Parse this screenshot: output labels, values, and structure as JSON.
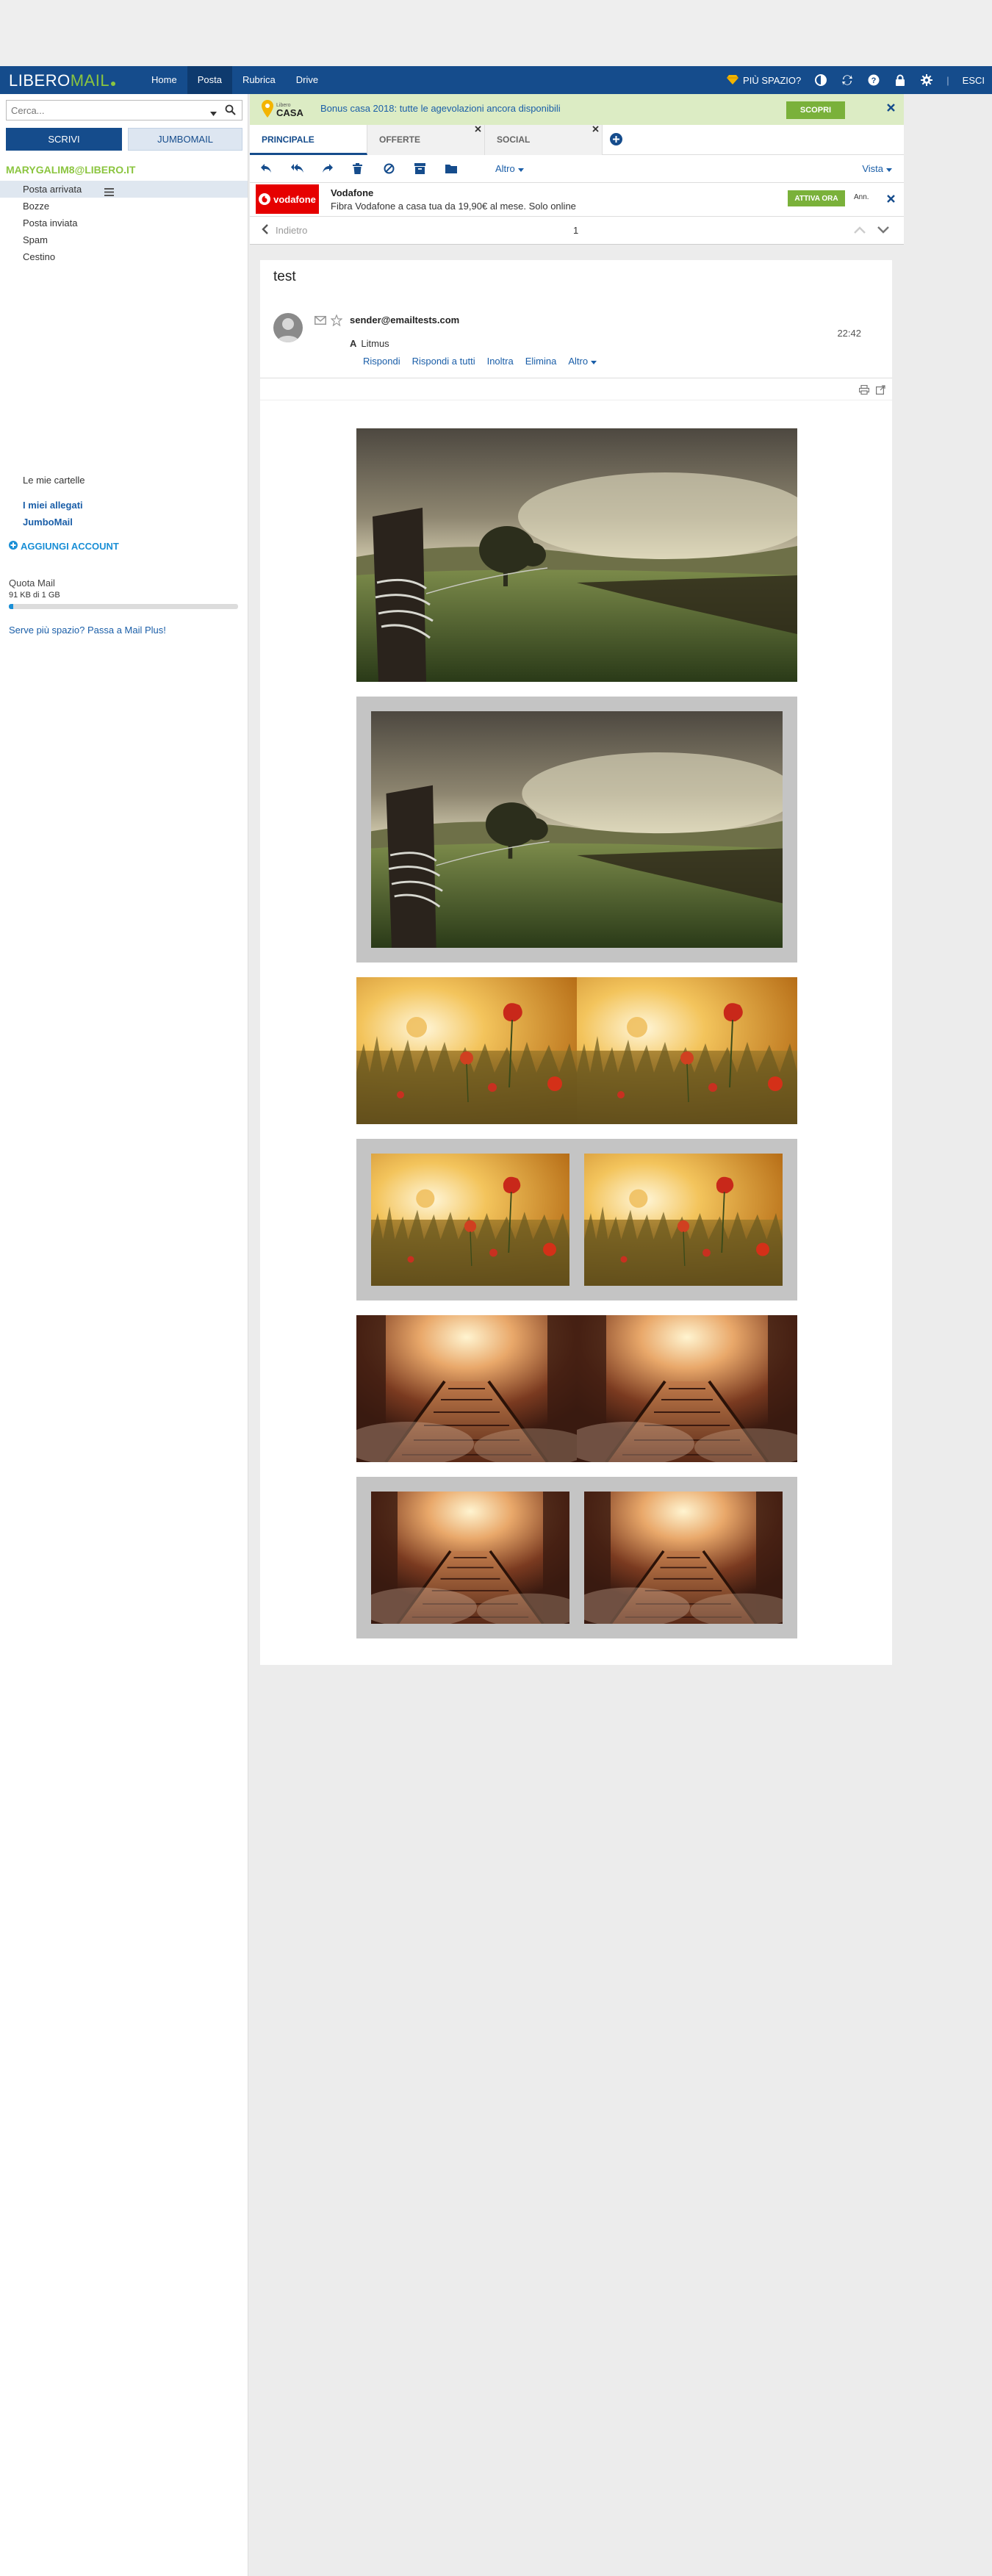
{
  "app": {
    "logo_part1": "LIBERO",
    "logo_part2": "MAIL",
    "colors": {
      "brand": "#154c8c",
      "accent": "#8bc53f",
      "link": "#1a5ea8"
    }
  },
  "nav": {
    "items": [
      {
        "label": "Home"
      },
      {
        "label": "Posta"
      },
      {
        "label": "Rubrica"
      },
      {
        "label": "Drive"
      }
    ],
    "more_space": "PIÙ SPAZIO?",
    "logout": "ESCI",
    "separator": "|"
  },
  "sidebar": {
    "search_placeholder": "Cerca...",
    "compose_label": "SCRIVI",
    "jumbo_label": "JUMBOMAIL",
    "account": "MARYGALIM8@LIBERO.IT",
    "folders": [
      {
        "label": "Posta arrivata"
      },
      {
        "label": "Bozze"
      },
      {
        "label": "Posta inviata"
      },
      {
        "label": "Spam"
      },
      {
        "label": "Cestino"
      }
    ],
    "my_folders": "Le mie cartelle",
    "attachments": "I miei allegati",
    "jumbomail": "JumboMail",
    "add_account": "AGGIUNGI ACCOUNT",
    "quota_label": "Quota Mail",
    "quota_value": "91 KB di 1 GB",
    "quota_fraction": 0.02,
    "upsell": "Serve più spazio? Passa a Mail Plus!"
  },
  "promo": {
    "logo_top": "Libero",
    "logo_text": "CASA",
    "text": "Bonus casa 2018: tutte le agevolazioni ancora disponibili",
    "button": "SCOPRI"
  },
  "tabs": {
    "items": [
      {
        "label": "PRINCIPALE"
      },
      {
        "label": "OFFERTE"
      },
      {
        "label": "SOCIAL"
      }
    ]
  },
  "toolbar": {
    "more": "Altro",
    "view": "Vista"
  },
  "ad": {
    "logo": "vodafone",
    "title": "Vodafone",
    "text": "Fibra Vodafone a casa tua da 19,90€ al mese. Solo online",
    "button": "ATTIVA ORA",
    "ann": "Ann."
  },
  "pager": {
    "back": "Indietro",
    "page": "1"
  },
  "message": {
    "subject": "test",
    "sender": "sender@emailtests.com",
    "time": "22:42",
    "to_label": "A",
    "to_value": "Litmus",
    "actions": {
      "reply": "Rispondi",
      "reply_all": "Rispondi a tutti",
      "forward": "Inoltra",
      "delete": "Elimina",
      "more": "Altro"
    }
  }
}
